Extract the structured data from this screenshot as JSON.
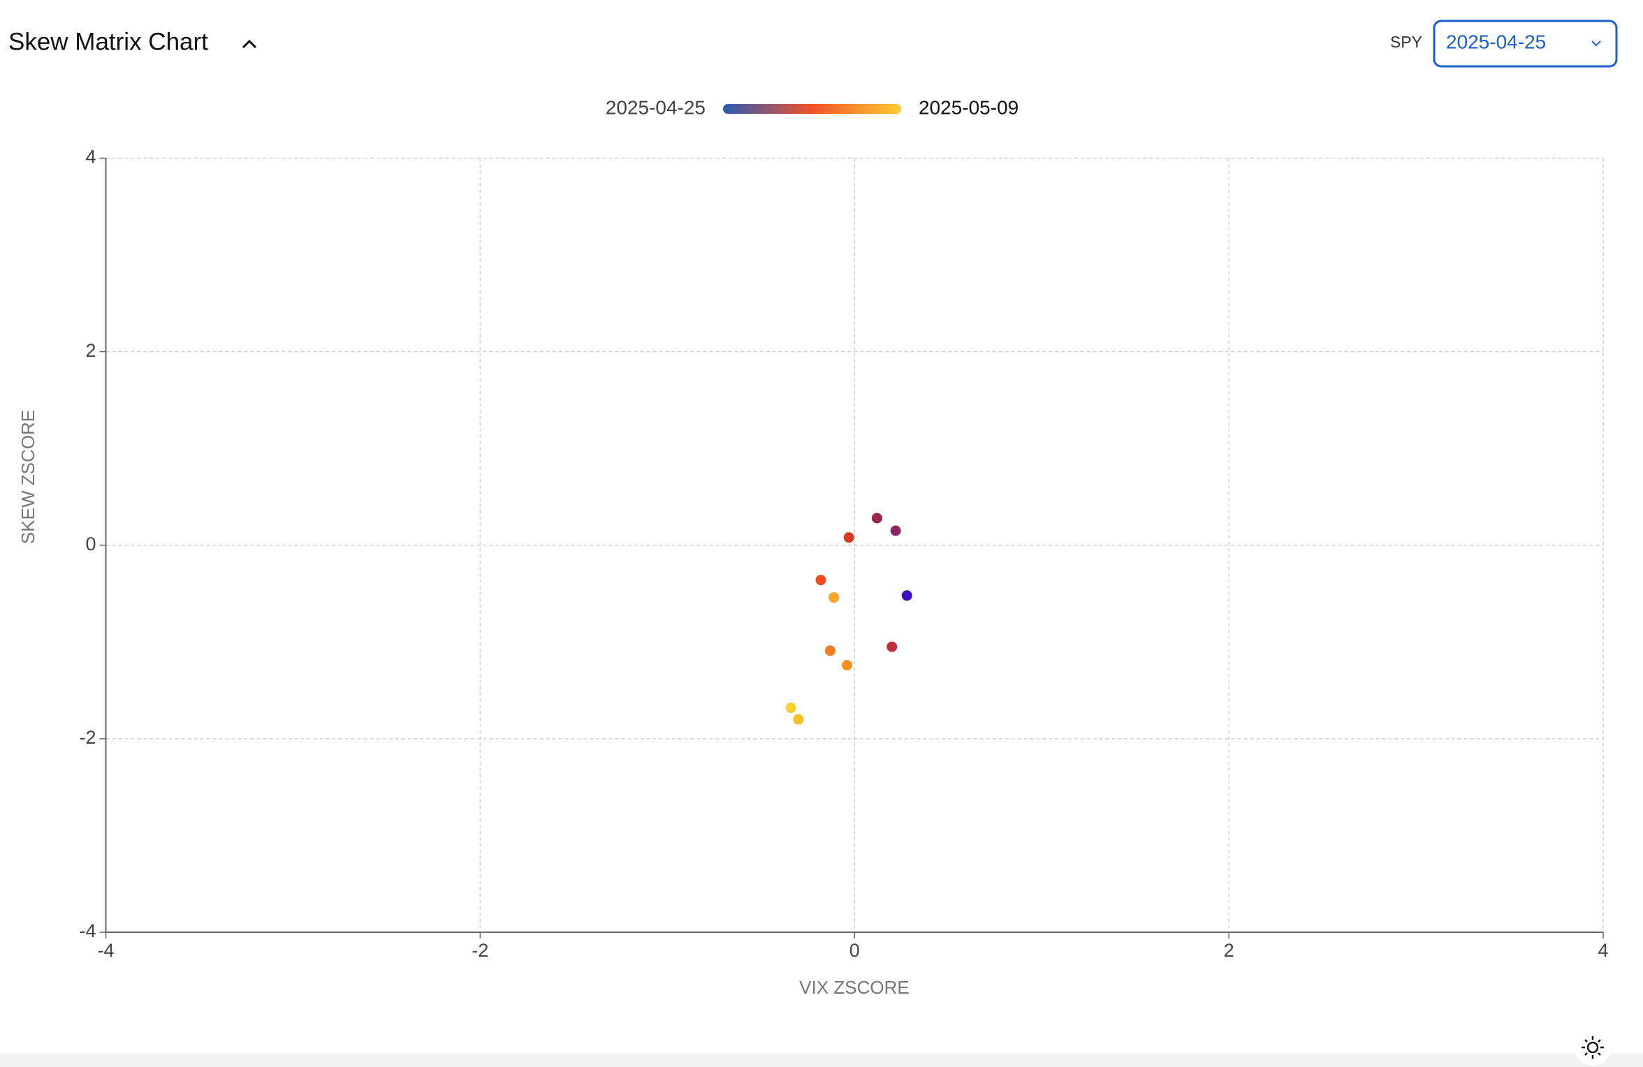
{
  "header": {
    "title": "Skew Matrix Chart",
    "ticker": "SPY",
    "selected_date": "2025-04-25"
  },
  "chart_data": {
    "type": "scatter",
    "legend": {
      "start_label": "2025-04-25",
      "end_label": "2025-05-09",
      "gradient_colors": [
        "#2a5db0",
        "#f0522a",
        "#ffcc33"
      ]
    },
    "xlabel": "VIX ZSCORE",
    "ylabel": "SKEW ZSCORE",
    "x": [
      0.12,
      0.22,
      -0.03,
      -0.18,
      -0.11,
      0.28,
      0.2,
      -0.13,
      -0.04,
      -0.34,
      -0.3
    ],
    "y": [
      0.28,
      0.15,
      0.08,
      -0.36,
      -0.54,
      -0.52,
      -1.05,
      -1.09,
      -1.24,
      -1.68,
      -1.8
    ],
    "colors": [
      "#9b2350",
      "#8e2460",
      "#d93a25",
      "#f04b21",
      "#f5a623",
      "#3b10c0",
      "#c0303a",
      "#f47b20",
      "#f5901f",
      "#f8d030",
      "#f7c028"
    ],
    "xlim": [
      -4,
      4
    ],
    "ylim": [
      -4,
      4
    ],
    "xticks": [
      -4,
      -2,
      0,
      2,
      4
    ],
    "yticks": [
      -4,
      -2,
      0,
      2,
      4
    ],
    "grid": true
  }
}
